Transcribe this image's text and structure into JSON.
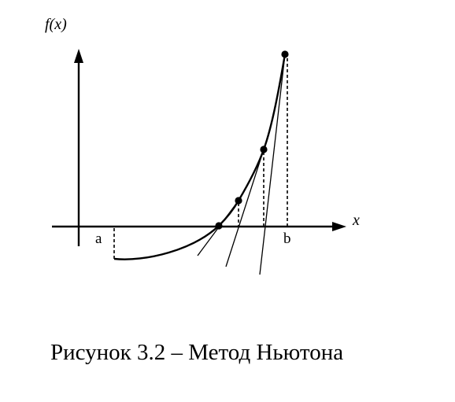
{
  "figure": {
    "y_axis_label": "f(x)",
    "x_axis_label": "x",
    "left_bound_label": "a",
    "right_bound_label": "b",
    "caption": "Рисунок 3.2 – Метод Ньютона"
  },
  "colors": {
    "ink": "#000000",
    "background": "#ffffff"
  }
}
